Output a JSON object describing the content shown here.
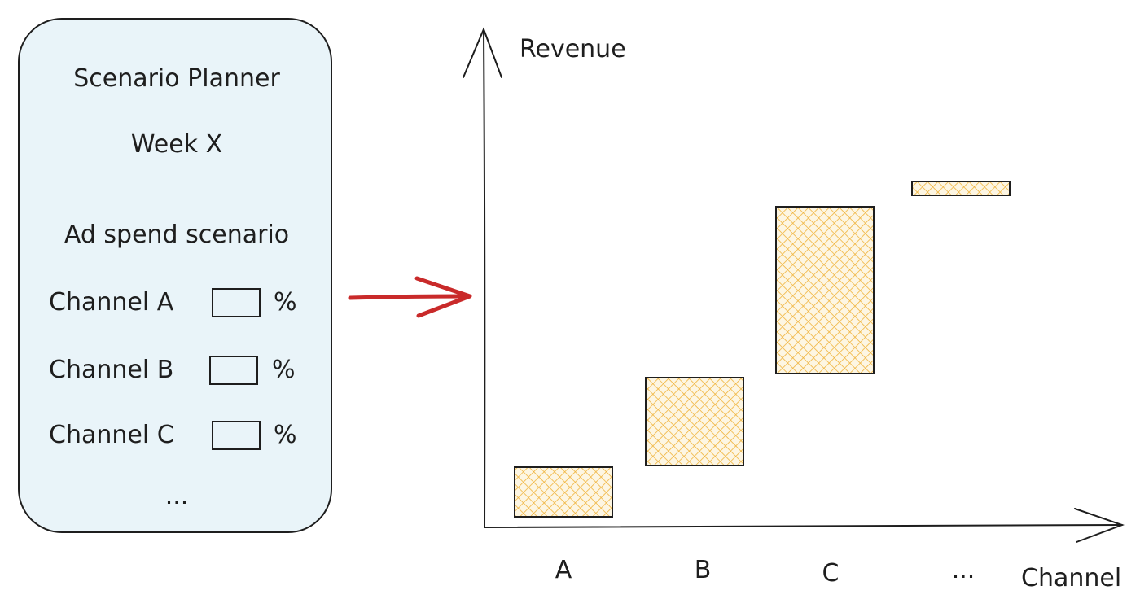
{
  "panel": {
    "title": "Scenario Planner",
    "week": "Week X",
    "scenario_label": "Ad spend scenario",
    "channels": [
      {
        "label": "Channel A",
        "value": "",
        "unit": "%"
      },
      {
        "label": "Channel B",
        "value": "",
        "unit": "%"
      },
      {
        "label": "Channel C",
        "value": "",
        "unit": "%"
      }
    ],
    "more": "..."
  },
  "chart": {
    "ylabel": "Revenue",
    "xlabel": "Channel",
    "categories": [
      "A",
      "B",
      "C",
      "..."
    ]
  },
  "colors": {
    "panel_bg": "#e9f4f9",
    "arrow": "#c92a2a",
    "hatch": "#f0b43c",
    "bar_bg": "#fdf6e3",
    "stroke": "#1e1e1e"
  }
}
